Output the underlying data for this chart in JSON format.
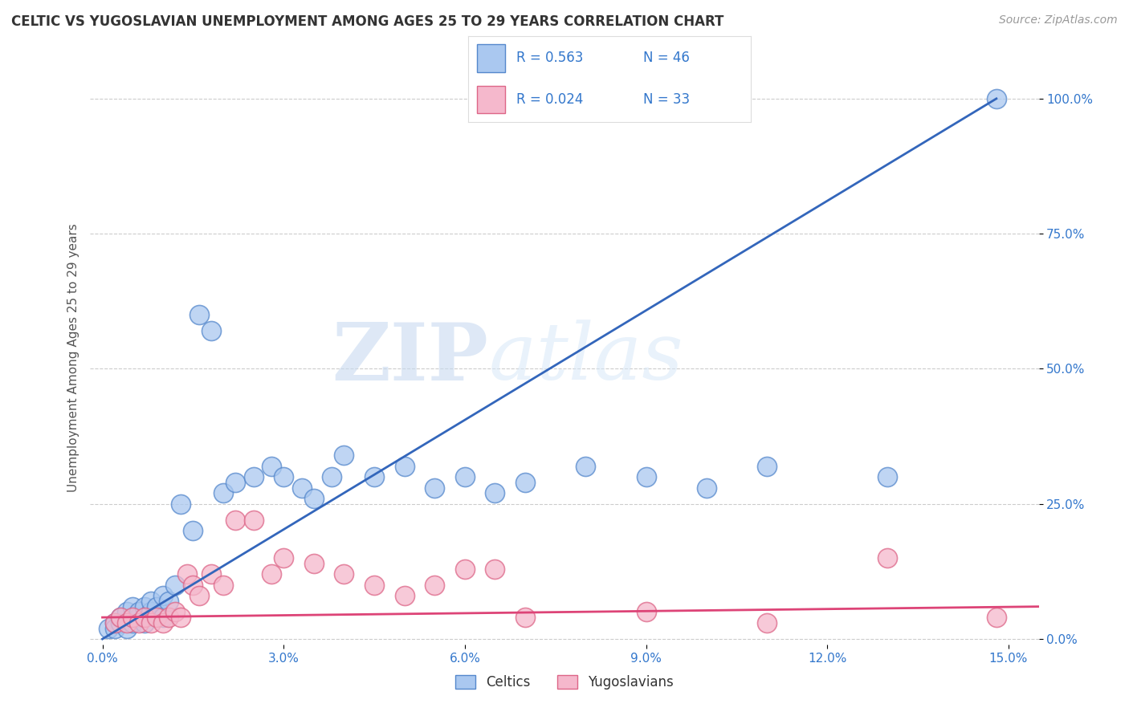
{
  "title": "CELTIC VS YUGOSLAVIAN UNEMPLOYMENT AMONG AGES 25 TO 29 YEARS CORRELATION CHART",
  "source_text": "Source: ZipAtlas.com",
  "ylabel": "Unemployment Among Ages 25 to 29 years",
  "xlim": [
    -0.002,
    0.155
  ],
  "ylim": [
    -0.01,
    1.05
  ],
  "xticks": [
    0.0,
    0.03,
    0.06,
    0.09,
    0.12,
    0.15
  ],
  "xticklabels": [
    "0.0%",
    "3.0%",
    "6.0%",
    "9.0%",
    "12.0%",
    "15.0%"
  ],
  "yticks_right": [
    0.0,
    0.25,
    0.5,
    0.75,
    1.0
  ],
  "yticklabels_right": [
    "0.0%",
    "25.0%",
    "50.0%",
    "75.0%",
    "100.0%"
  ],
  "background_color": "#ffffff",
  "grid_color": "#cccccc",
  "celtics_color": "#aac8f0",
  "celtics_edge_color": "#5588cc",
  "yugoslavians_color": "#f5b8cc",
  "yugoslavians_edge_color": "#dd6688",
  "celtics_line_color": "#3366bb",
  "yugoslavians_line_color": "#dd4477",
  "legend_label1": "Celtics",
  "legend_label2": "Yugoslavians",
  "watermark_zip": "ZIP",
  "watermark_atlas": "atlas",
  "title_fontsize": 12,
  "celtics_x": [
    0.001,
    0.002,
    0.002,
    0.003,
    0.003,
    0.004,
    0.004,
    0.005,
    0.005,
    0.005,
    0.006,
    0.006,
    0.007,
    0.007,
    0.008,
    0.008,
    0.009,
    0.01,
    0.01,
    0.011,
    0.012,
    0.013,
    0.015,
    0.016,
    0.018,
    0.02,
    0.022,
    0.025,
    0.028,
    0.03,
    0.033,
    0.035,
    0.038,
    0.04,
    0.045,
    0.05,
    0.055,
    0.06,
    0.065,
    0.07,
    0.08,
    0.09,
    0.1,
    0.11,
    0.13,
    0.148
  ],
  "celtics_y": [
    0.02,
    0.03,
    0.02,
    0.03,
    0.04,
    0.02,
    0.05,
    0.03,
    0.04,
    0.06,
    0.04,
    0.05,
    0.03,
    0.06,
    0.05,
    0.07,
    0.06,
    0.04,
    0.08,
    0.07,
    0.1,
    0.25,
    0.2,
    0.6,
    0.57,
    0.27,
    0.29,
    0.3,
    0.32,
    0.3,
    0.28,
    0.26,
    0.3,
    0.34,
    0.3,
    0.32,
    0.28,
    0.3,
    0.27,
    0.29,
    0.32,
    0.3,
    0.28,
    0.32,
    0.3,
    1.0
  ],
  "yugoslavians_x": [
    0.002,
    0.003,
    0.004,
    0.005,
    0.006,
    0.007,
    0.008,
    0.009,
    0.01,
    0.011,
    0.012,
    0.013,
    0.014,
    0.015,
    0.016,
    0.018,
    0.02,
    0.022,
    0.025,
    0.028,
    0.03,
    0.035,
    0.04,
    0.045,
    0.05,
    0.055,
    0.06,
    0.065,
    0.07,
    0.09,
    0.11,
    0.13,
    0.148
  ],
  "yugoslavians_y": [
    0.03,
    0.04,
    0.03,
    0.04,
    0.03,
    0.04,
    0.03,
    0.04,
    0.03,
    0.04,
    0.05,
    0.04,
    0.12,
    0.1,
    0.08,
    0.12,
    0.1,
    0.22,
    0.22,
    0.12,
    0.15,
    0.14,
    0.12,
    0.1,
    0.08,
    0.1,
    0.13,
    0.13,
    0.04,
    0.05,
    0.03,
    0.15,
    0.04
  ],
  "celtics_trend_x": [
    0.0,
    0.148
  ],
  "celtics_trend_y": [
    0.0,
    1.0
  ],
  "yugoslavians_trend_x": [
    0.0,
    0.155
  ],
  "yugoslavians_trend_y": [
    0.04,
    0.06
  ]
}
